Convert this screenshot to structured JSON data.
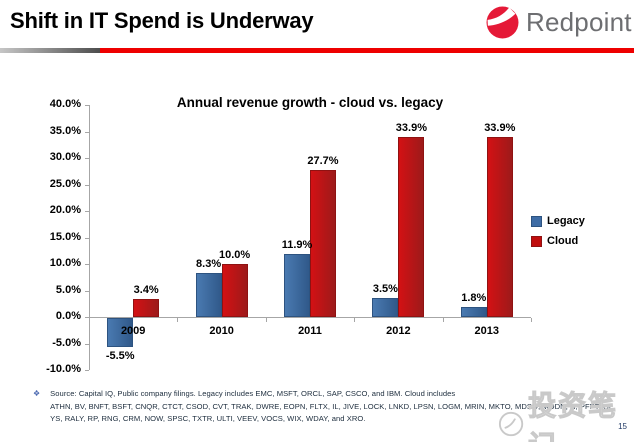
{
  "header": {
    "title": "Shift in IT Spend is Underway",
    "brand": "Redpoint"
  },
  "chart_data": {
    "type": "bar",
    "title": "Annual revenue growth - cloud vs. legacy",
    "categories": [
      "2009",
      "2010",
      "2011",
      "2012",
      "2013"
    ],
    "series": [
      {
        "name": "Legacy",
        "color": "#3E6CA5",
        "values": [
          -5.5,
          8.3,
          11.9,
          3.5,
          1.8
        ]
      },
      {
        "name": "Cloud",
        "color": "#C00D0D",
        "values": [
          3.4,
          10.0,
          27.7,
          33.9,
          33.9
        ]
      }
    ],
    "ylim": [
      -10,
      40
    ],
    "ytick_step": 5,
    "ytick_labels": [
      "40.0%",
      "35.0%",
      "30.0%",
      "25.0%",
      "20.0%",
      "15.0%",
      "10.0%",
      "5.0%",
      "0.0%",
      "-5.0%",
      "-10.0%"
    ],
    "value_label_format": "percent_one_decimal",
    "legend_position": "right",
    "grid": false
  },
  "footnote": {
    "bullet": "❖",
    "lines": [
      "Source: Capital IQ, Public company filings. Legacy includes EMC, MSFT, ORCL, SAP, CSCO, and IBM. Cloud includes",
      "ATHN, BV, BNFT, BSFT, CNQR, CTCT, CSOD, CVT, TRAK, DWRE, EOPN, FLTX, IL, JIVE, LOCK, LNKD, LPSN, LOGM, MRIN, MKTO, MDSO, MODN, N, PFPT, QL",
      "YS, RALY, RP, RNG, CRM, NOW, SPSC, TXTR, ULTI, VEEV, VOCS, WIX, WDAY, and XRO."
    ]
  },
  "watermark": {
    "text": "投资笔记"
  },
  "footer": {
    "page_number": "15"
  }
}
